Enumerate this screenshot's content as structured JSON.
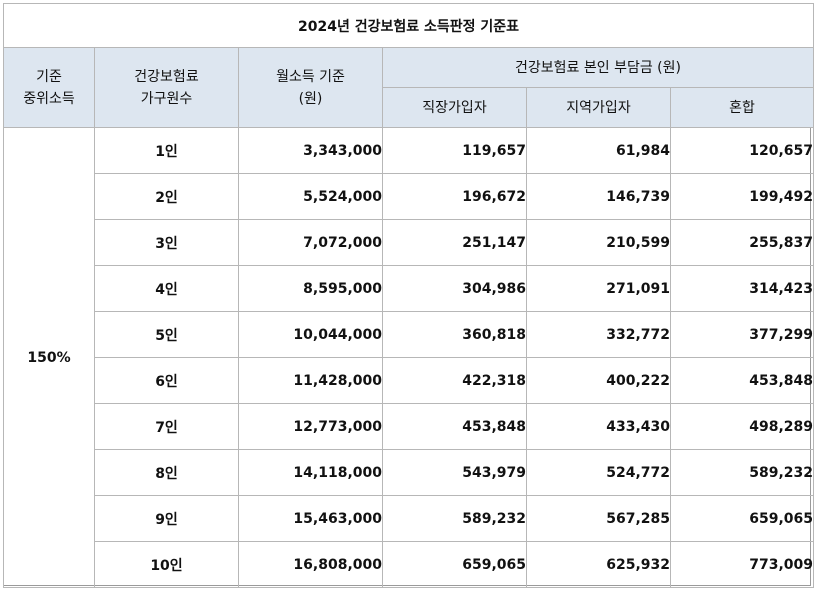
{
  "title": "2024년 건강보험료 소득판정 기준표",
  "headers": {
    "ratio_line1": "기준",
    "ratio_line2": "중위소득",
    "household_line1": "건강보험료",
    "household_line2": "가구원수",
    "income_line1": "월소득 기준",
    "income_line2": "(원)",
    "premium_group": "건강보험료 본인 부담금 (원)",
    "employee": "직장가입자",
    "regional": "지역가입자",
    "mixed": "혼합"
  },
  "ratio": "150%",
  "rows": [
    {
      "household": "1인",
      "income": "3,343,000",
      "employee": "119,657",
      "regional": "61,984",
      "mixed": "120,657"
    },
    {
      "household": "2인",
      "income": "5,524,000",
      "employee": "196,672",
      "regional": "146,739",
      "mixed": "199,492"
    },
    {
      "household": "3인",
      "income": "7,072,000",
      "employee": "251,147",
      "regional": "210,599",
      "mixed": "255,837"
    },
    {
      "household": "4인",
      "income": "8,595,000",
      "employee": "304,986",
      "regional": "271,091",
      "mixed": "314,423"
    },
    {
      "household": "5인",
      "income": "10,044,000",
      "employee": "360,818",
      "regional": "332,772",
      "mixed": "377,299"
    },
    {
      "household": "6인",
      "income": "11,428,000",
      "employee": "422,318",
      "regional": "400,222",
      "mixed": "453,848"
    },
    {
      "household": "7인",
      "income": "12,773,000",
      "employee": "453,848",
      "regional": "433,430",
      "mixed": "498,289"
    },
    {
      "household": "8인",
      "income": "14,118,000",
      "employee": "543,979",
      "regional": "524,772",
      "mixed": "589,232"
    },
    {
      "household": "9인",
      "income": "15,463,000",
      "employee": "589,232",
      "regional": "567,285",
      "mixed": "659,065"
    },
    {
      "household": "10인",
      "income": "16,808,000",
      "employee": "659,065",
      "regional": "625,932",
      "mixed": "773,009"
    }
  ]
}
